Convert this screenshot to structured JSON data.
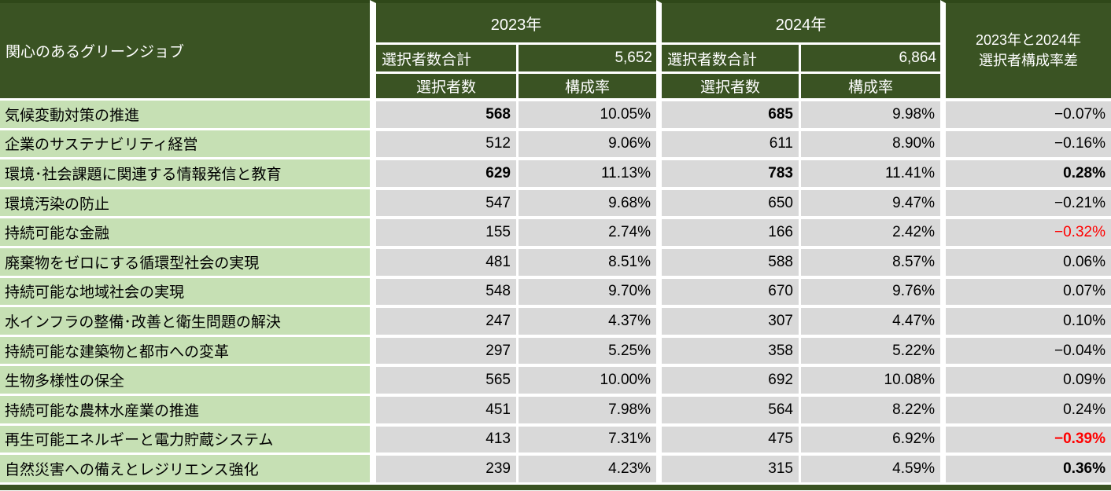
{
  "colors": {
    "header_bg": "#3A5323",
    "label_bg": "#C6E0B4",
    "cell_bg": "#D9D9D9",
    "negative_red": "#FF0000",
    "border": "#FFFFFF",
    "text_dark": "#000000",
    "text_light": "#FFFFFF"
  },
  "header": {
    "title": "関心のあるグリーンジョブ",
    "year_2023": "2023年",
    "year_2024": "2024年",
    "total_label_2023": "選択者数合計",
    "total_value_2023": "5,652",
    "total_label_2024": "選択者数合計",
    "total_value_2024": "6,864",
    "count_label_2023": "選択者数",
    "rate_label_2023": "構成率",
    "count_label_2024": "選択者数",
    "rate_label_2024": "構成率",
    "diff_label_line1": "2023年と2024年",
    "diff_label_line2": "選択者構成率差"
  },
  "rows": [
    {
      "label": "気候変動対策の推進",
      "count_2023": "568",
      "rate_2023": "10.05%",
      "count_2024": "685",
      "rate_2024": "9.98%",
      "diff": "−0.07%",
      "bold_count_2023": true,
      "bold_count_2024": true,
      "bold_diff": false,
      "red_diff": false
    },
    {
      "label": "企業のサステナビリティ経営",
      "count_2023": "512",
      "rate_2023": "9.06%",
      "count_2024": "611",
      "rate_2024": "8.90%",
      "diff": "−0.16%",
      "bold_count_2023": false,
      "bold_count_2024": false,
      "bold_diff": false,
      "red_diff": false
    },
    {
      "label": "環境･社会課題に関連する情報発信と教育",
      "count_2023": "629",
      "rate_2023": "11.13%",
      "count_2024": "783",
      "rate_2024": "11.41%",
      "diff": "0.28%",
      "bold_count_2023": true,
      "bold_count_2024": true,
      "bold_diff": true,
      "red_diff": false
    },
    {
      "label": "環境汚染の防止",
      "count_2023": "547",
      "rate_2023": "9.68%",
      "count_2024": "650",
      "rate_2024": "9.47%",
      "diff": "−0.21%",
      "bold_count_2023": false,
      "bold_count_2024": false,
      "bold_diff": false,
      "red_diff": false
    },
    {
      "label": "持続可能な金融",
      "count_2023": "155",
      "rate_2023": "2.74%",
      "count_2024": "166",
      "rate_2024": "2.42%",
      "diff": "−0.32%",
      "bold_count_2023": false,
      "bold_count_2024": false,
      "bold_diff": false,
      "red_diff": true
    },
    {
      "label": "廃棄物をゼロにする循環型社会の実現",
      "count_2023": "481",
      "rate_2023": "8.51%",
      "count_2024": "588",
      "rate_2024": "8.57%",
      "diff": "0.06%",
      "bold_count_2023": false,
      "bold_count_2024": false,
      "bold_diff": false,
      "red_diff": false
    },
    {
      "label": "持続可能な地域社会の実現",
      "count_2023": "548",
      "rate_2023": "9.70%",
      "count_2024": "670",
      "rate_2024": "9.76%",
      "diff": "0.07%",
      "bold_count_2023": false,
      "bold_count_2024": false,
      "bold_diff": false,
      "red_diff": false
    },
    {
      "label": "水インフラの整備･改善と衛生問題の解決",
      "count_2023": "247",
      "rate_2023": "4.37%",
      "count_2024": "307",
      "rate_2024": "4.47%",
      "diff": "0.10%",
      "bold_count_2023": false,
      "bold_count_2024": false,
      "bold_diff": false,
      "red_diff": false
    },
    {
      "label": "持続可能な建築物と都市への変革",
      "count_2023": "297",
      "rate_2023": "5.25%",
      "count_2024": "358",
      "rate_2024": "5.22%",
      "diff": "−0.04%",
      "bold_count_2023": false,
      "bold_count_2024": false,
      "bold_diff": false,
      "red_diff": false
    },
    {
      "label": "生物多様性の保全",
      "count_2023": "565",
      "rate_2023": "10.00%",
      "count_2024": "692",
      "rate_2024": "10.08%",
      "diff": "0.09%",
      "bold_count_2023": false,
      "bold_count_2024": false,
      "bold_diff": false,
      "red_diff": false
    },
    {
      "label": "持続可能な農林水産業の推進",
      "count_2023": "451",
      "rate_2023": "7.98%",
      "count_2024": "564",
      "rate_2024": "8.22%",
      "diff": "0.24%",
      "bold_count_2023": false,
      "bold_count_2024": false,
      "bold_diff": false,
      "red_diff": false
    },
    {
      "label": "再生可能エネルギーと電力貯蔵システム",
      "count_2023": "413",
      "rate_2023": "7.31%",
      "count_2024": "475",
      "rate_2024": "6.92%",
      "diff": "−0.39%",
      "bold_count_2023": false,
      "bold_count_2024": false,
      "bold_diff": true,
      "red_diff": true
    },
    {
      "label": "自然災害への備えとレジリエンス強化",
      "count_2023": "239",
      "rate_2023": "4.23%",
      "count_2024": "315",
      "rate_2024": "4.59%",
      "diff": "0.36%",
      "bold_count_2023": false,
      "bold_count_2024": false,
      "bold_diff": true,
      "red_diff": false
    }
  ],
  "chart_data": {
    "type": "table",
    "title": "関心のあるグリーンジョブ",
    "columns": [
      "関心のあるグリーンジョブ",
      "2023年 選択者数",
      "2023年 構成率",
      "2024年 選択者数",
      "2024年 構成率",
      "2023年と2024年選択者構成率差"
    ],
    "totals": {
      "selected_2023": 5652,
      "selected_2024": 6864
    },
    "rows": [
      [
        "気候変動対策の推進",
        568,
        10.05,
        685,
        9.98,
        -0.07
      ],
      [
        "企業のサステナビリティ経営",
        512,
        9.06,
        611,
        8.9,
        -0.16
      ],
      [
        "環境･社会課題に関連する情報発信と教育",
        629,
        11.13,
        783,
        11.41,
        0.28
      ],
      [
        "環境汚染の防止",
        547,
        9.68,
        650,
        9.47,
        -0.21
      ],
      [
        "持続可能な金融",
        155,
        2.74,
        166,
        2.42,
        -0.32
      ],
      [
        "廃棄物をゼロにする循環型社会の実現",
        481,
        8.51,
        588,
        8.57,
        0.06
      ],
      [
        "持続可能な地域社会の実現",
        548,
        9.7,
        670,
        9.76,
        0.07
      ],
      [
        "水インフラの整備･改善と衛生問題の解決",
        247,
        4.37,
        307,
        4.47,
        0.1
      ],
      [
        "持続可能な建築物と都市への変革",
        297,
        5.25,
        358,
        5.22,
        -0.04
      ],
      [
        "生物多様性の保全",
        565,
        10.0,
        692,
        10.08,
        0.09
      ],
      [
        "持続可能な農林水産業の推進",
        451,
        7.98,
        564,
        8.22,
        0.24
      ],
      [
        "再生可能エネルギーと電力貯蔵システム",
        413,
        7.31,
        475,
        6.92,
        -0.39
      ],
      [
        "自然災害への備えとレジリエンス強化",
        239,
        4.23,
        315,
        4.59,
        0.36
      ]
    ]
  }
}
